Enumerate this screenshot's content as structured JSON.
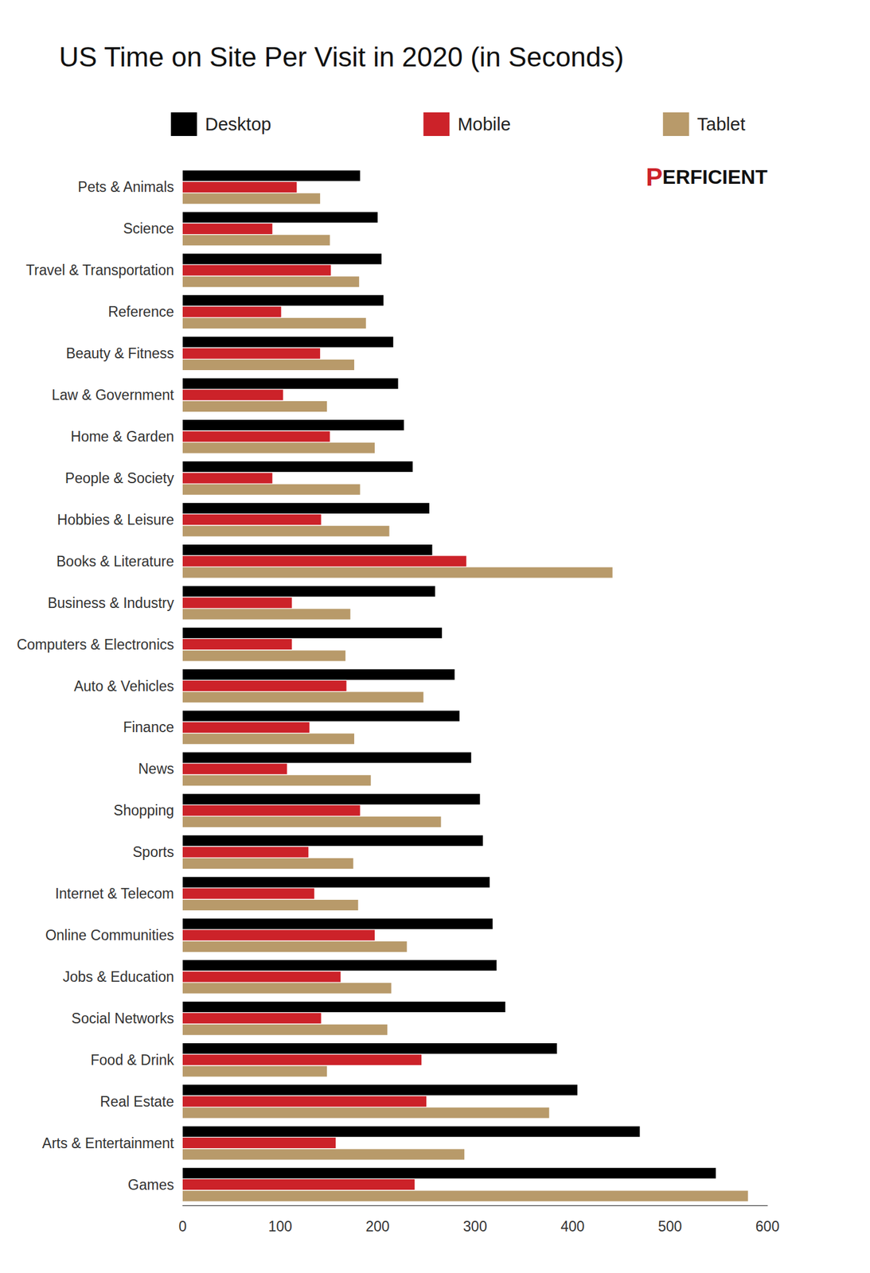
{
  "chart_data": {
    "type": "bar",
    "title": "US Time on Site Per Visit in 2020 (in Seconds)",
    "orientation": "horizontal",
    "categories": [
      "Pets & Animals",
      "Science",
      "Travel & Transportation",
      "Reference",
      "Beauty & Fitness",
      "Law & Government",
      "Home & Garden",
      "People & Society",
      "Hobbies & Leisure",
      "Books & Literature",
      "Business & Industry",
      "Computers & Electronics",
      "Auto & Vehicles",
      "Finance",
      "News",
      "Shopping",
      "Sports",
      "Internet & Telecom",
      "Online Communities",
      "Jobs & Education",
      "Social Networks",
      "Food & Drink",
      "Real Estate",
      "Arts & Entertainment",
      "Games"
    ],
    "series": [
      {
        "name": "Desktop",
        "color": "#000000",
        "values": [
          182,
          200,
          204,
          206,
          216,
          221,
          227,
          236,
          253,
          256,
          259,
          266,
          279,
          284,
          296,
          305,
          308,
          315,
          318,
          322,
          331,
          384,
          405,
          469,
          547
        ]
      },
      {
        "name": "Mobile",
        "color": "#cc2229",
        "values": [
          117,
          92,
          152,
          101,
          141,
          103,
          151,
          92,
          142,
          291,
          112,
          112,
          168,
          130,
          107,
          182,
          129,
          135,
          197,
          162,
          142,
          245,
          250,
          157,
          238
        ]
      },
      {
        "name": "Tablet",
        "color": "#b89a6a",
        "values": [
          141,
          151,
          181,
          188,
          176,
          148,
          197,
          182,
          212,
          441,
          172,
          167,
          247,
          176,
          193,
          265,
          175,
          180,
          230,
          214,
          210,
          148,
          376,
          289,
          580
        ]
      }
    ],
    "xlim": [
      0,
      600
    ],
    "xticks": [
      0,
      100,
      200,
      300,
      400,
      500,
      600
    ],
    "grid": false,
    "legend": "top",
    "annotations": [
      "PERFICIENT"
    ]
  }
}
